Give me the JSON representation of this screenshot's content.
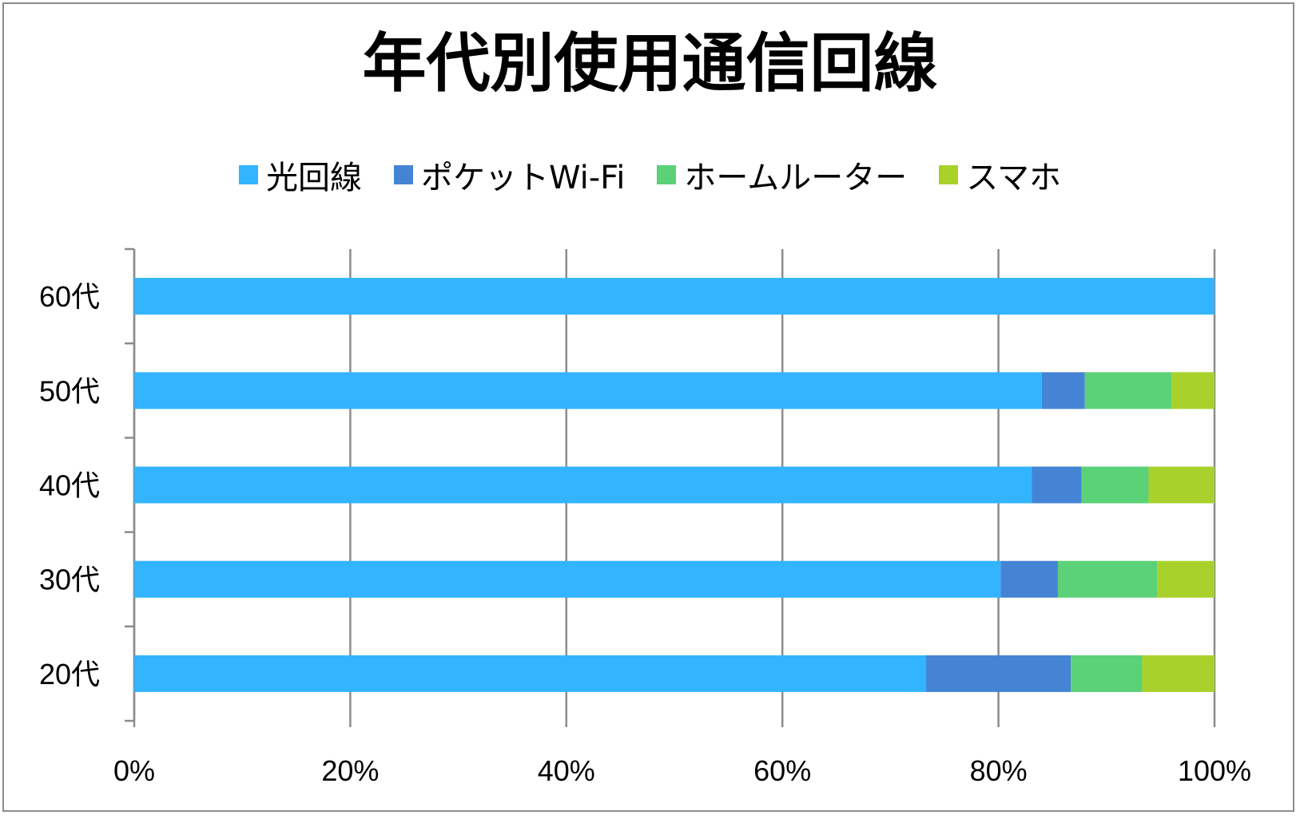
{
  "chart_data": {
    "type": "bar",
    "orientation": "horizontal",
    "stacked": "100%",
    "title": "年代別使用通信回線",
    "categories": [
      "20代",
      "30代",
      "40代",
      "50代",
      "60代"
    ],
    "series": [
      {
        "name": "光回線",
        "color": "#33b4fe",
        "values": [
          73.3,
          80.2,
          83.1,
          84.0,
          100
        ]
      },
      {
        "name": "ポケットWi-Fi",
        "color": "#4584d4",
        "values": [
          13.4,
          5.3,
          4.6,
          4.0,
          0
        ]
      },
      {
        "name": "ホームルーター",
        "color": "#5bd178",
        "values": [
          6.6,
          9.2,
          6.2,
          8.0,
          0
        ]
      },
      {
        "name": "スマホ",
        "color": "#a8d12c",
        "values": [
          6.7,
          5.3,
          6.1,
          4.0,
          0
        ]
      }
    ],
    "x_ticks": [
      "0%",
      "20%",
      "40%",
      "60%",
      "80%",
      "100%"
    ],
    "xlim": [
      0,
      100
    ],
    "grid": "vertical",
    "legend_position": "top"
  }
}
